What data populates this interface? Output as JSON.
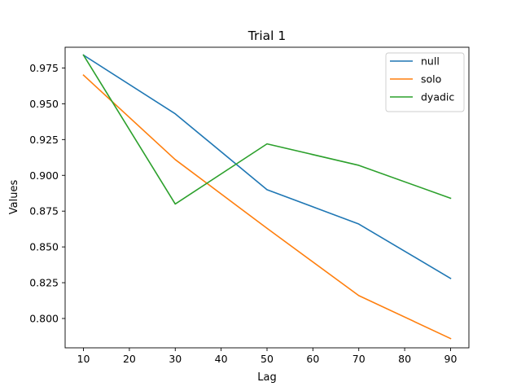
{
  "chart_data": {
    "type": "line",
    "title": "Trial 1",
    "xlabel": "Lag",
    "ylabel": "Values",
    "x": [
      10,
      30,
      50,
      70,
      90
    ],
    "xticks": [
      10,
      20,
      30,
      40,
      50,
      60,
      70,
      80,
      90
    ],
    "yticks": [
      0.8,
      0.825,
      0.85,
      0.875,
      0.9,
      0.925,
      0.95,
      0.975
    ],
    "ytick_labels": [
      "0.800",
      "0.825",
      "0.850",
      "0.875",
      "0.900",
      "0.925",
      "0.950",
      "0.975"
    ],
    "xlim": [
      6,
      94
    ],
    "ylim": [
      0.7795,
      0.9895
    ],
    "grid": false,
    "legend_position": "top-right",
    "series": [
      {
        "name": "null",
        "color": "#1f77b4",
        "values": [
          0.984,
          0.943,
          0.89,
          0.866,
          0.828
        ]
      },
      {
        "name": "solo",
        "color": "#ff7f0e",
        "values": [
          0.97,
          0.911,
          0.863,
          0.816,
          0.786
        ]
      },
      {
        "name": "dyadic",
        "color": "#2ca02c",
        "values": [
          0.984,
          0.88,
          0.922,
          0.907,
          0.884
        ]
      }
    ]
  }
}
